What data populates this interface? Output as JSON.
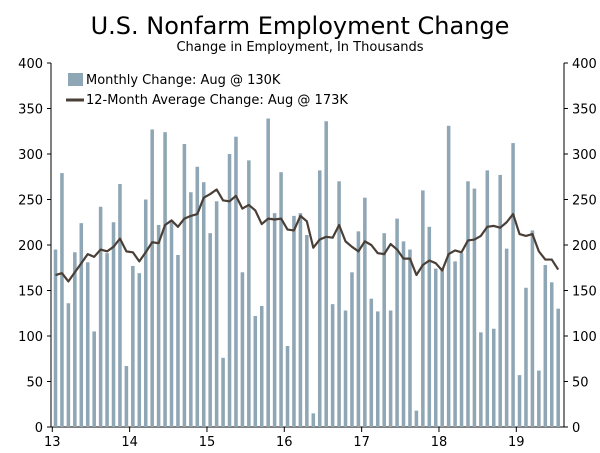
{
  "chart_data": {
    "type": "bar",
    "title": "U.S. Nonfarm Employment Change",
    "subtitle": "Change in Employment, In Thousands",
    "ylim": [
      0,
      400
    ],
    "y_ticks": [
      0,
      50,
      100,
      150,
      200,
      250,
      300,
      350,
      400
    ],
    "x_tick_labels": [
      "13",
      "14",
      "15",
      "16",
      "17",
      "18",
      "19"
    ],
    "x_tick_start_months": [
      0,
      12,
      24,
      36,
      48,
      60,
      72
    ],
    "legend": {
      "position": "top-left",
      "bar_label": "Monthly Change: Aug @ 130K",
      "line_label": "12-Month Average Change: Aug @ 173K"
    },
    "colors": {
      "bar": "#8fa6b5",
      "line": "#4a3f36",
      "axis": "#000000"
    },
    "series": [
      {
        "name": "Monthly Change",
        "type": "bar",
        "values": [
          195,
          279,
          136,
          192,
          224,
          181,
          105,
          242,
          191,
          225,
          267,
          67,
          177,
          169,
          250,
          327,
          222,
          324,
          227,
          189,
          311,
          258,
          286,
          269,
          213,
          248,
          76,
          300,
          319,
          170,
          293,
          122,
          133,
          339,
          235,
          280,
          89,
          232,
          235,
          211,
          15,
          282,
          336,
          135,
          270,
          128,
          170,
          215,
          252,
          141,
          127,
          213,
          128,
          229,
          204,
          195,
          18,
          260,
          220,
          174,
          175,
          331,
          182,
          191,
          270,
          262,
          104,
          282,
          108,
          277,
          196,
          312,
          57,
          153,
          216,
          62,
          178,
          159,
          130
        ],
        "month_labels_start": "2013-01"
      },
      {
        "name": "12-Month Average Change",
        "type": "line",
        "values": [
          167,
          169,
          160,
          170,
          180,
          190,
          187,
          195,
          193,
          198,
          207,
          193,
          192,
          182,
          192,
          203,
          202,
          222,
          227,
          220,
          229,
          232,
          234,
          252,
          256,
          261,
          249,
          248,
          254,
          240,
          244,
          238,
          223,
          229,
          228,
          229,
          217,
          216,
          232,
          226,
          197,
          206,
          209,
          208,
          222,
          204,
          198,
          193,
          204,
          200,
          191,
          190,
          201,
          195,
          185,
          185,
          167,
          178,
          183,
          180,
          172,
          190,
          194,
          192,
          205,
          206,
          210,
          220,
          221,
          219,
          225,
          234,
          212,
          210,
          212,
          193,
          184,
          184,
          173
        ]
      }
    ]
  }
}
